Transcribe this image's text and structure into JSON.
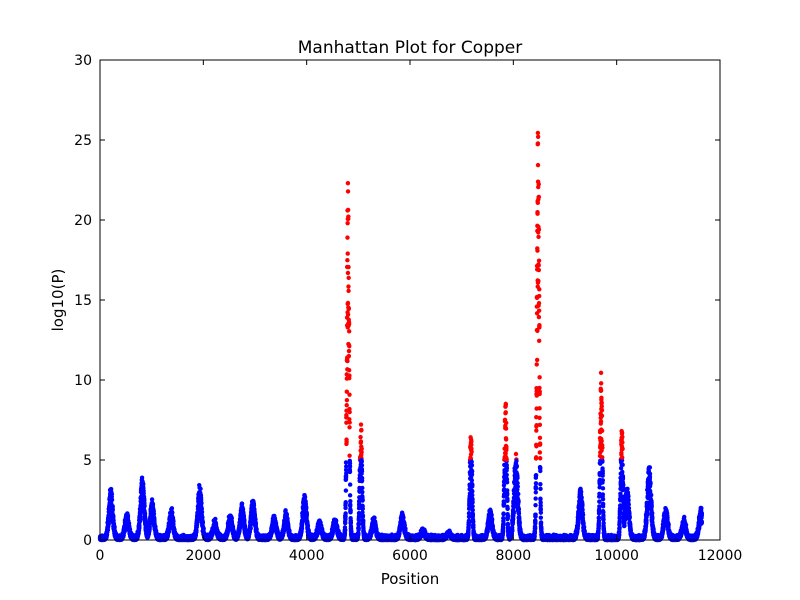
{
  "chart_data": {
    "type": "scatter",
    "title": "Manhattan Plot for Copper",
    "xlabel": "Position",
    "ylabel": "log10(P)",
    "xlim": [
      0,
      12000
    ],
    "ylim": [
      0,
      30
    ],
    "xticks": [
      "0",
      "2000",
      "4000",
      "6000",
      "8000",
      "10000",
      "12000"
    ],
    "yticks": [
      "0",
      "5",
      "10",
      "15",
      "20",
      "25",
      "30"
    ],
    "grid": false,
    "significance_threshold": 5,
    "colors": {
      "below_threshold": "#0000ff",
      "above_threshold": "#ff0000"
    },
    "n_positions": 11650,
    "background_peaks": [
      {
        "x": 210,
        "y": 3.1
      },
      {
        "x": 520,
        "y": 1.6
      },
      {
        "x": 820,
        "y": 3.8
      },
      {
        "x": 1010,
        "y": 2.4
      },
      {
        "x": 1380,
        "y": 1.8
      },
      {
        "x": 1930,
        "y": 3.3
      },
      {
        "x": 2220,
        "y": 1.1
      },
      {
        "x": 2520,
        "y": 1.5
      },
      {
        "x": 2750,
        "y": 2.1
      },
      {
        "x": 2960,
        "y": 2.5
      },
      {
        "x": 3370,
        "y": 1.5
      },
      {
        "x": 3600,
        "y": 1.6
      },
      {
        "x": 3960,
        "y": 2.8
      },
      {
        "x": 4250,
        "y": 1.1
      },
      {
        "x": 4550,
        "y": 1.3
      },
      {
        "x": 5300,
        "y": 1.3
      },
      {
        "x": 5850,
        "y": 1.6
      },
      {
        "x": 6250,
        "y": 0.5
      },
      {
        "x": 6750,
        "y": 0.4
      },
      {
        "x": 7550,
        "y": 1.8
      },
      {
        "x": 8050,
        "y": 5.3
      },
      {
        "x": 9300,
        "y": 3.2
      },
      {
        "x": 10200,
        "y": 3.3
      },
      {
        "x": 10630,
        "y": 4.6
      },
      {
        "x": 10950,
        "y": 2.0
      },
      {
        "x": 11300,
        "y": 1.2
      },
      {
        "x": 11630,
        "y": 1.8
      }
    ],
    "significant_peaks": [
      {
        "x": 4800,
        "y": 22.5
      },
      {
        "x": 5050,
        "y": 7.2
      },
      {
        "x": 7180,
        "y": 7.0
      },
      {
        "x": 7850,
        "y": 8.7
      },
      {
        "x": 8480,
        "y": 27.4
      },
      {
        "x": 9700,
        "y": 10.4
      },
      {
        "x": 10100,
        "y": 7.1
      }
    ]
  }
}
